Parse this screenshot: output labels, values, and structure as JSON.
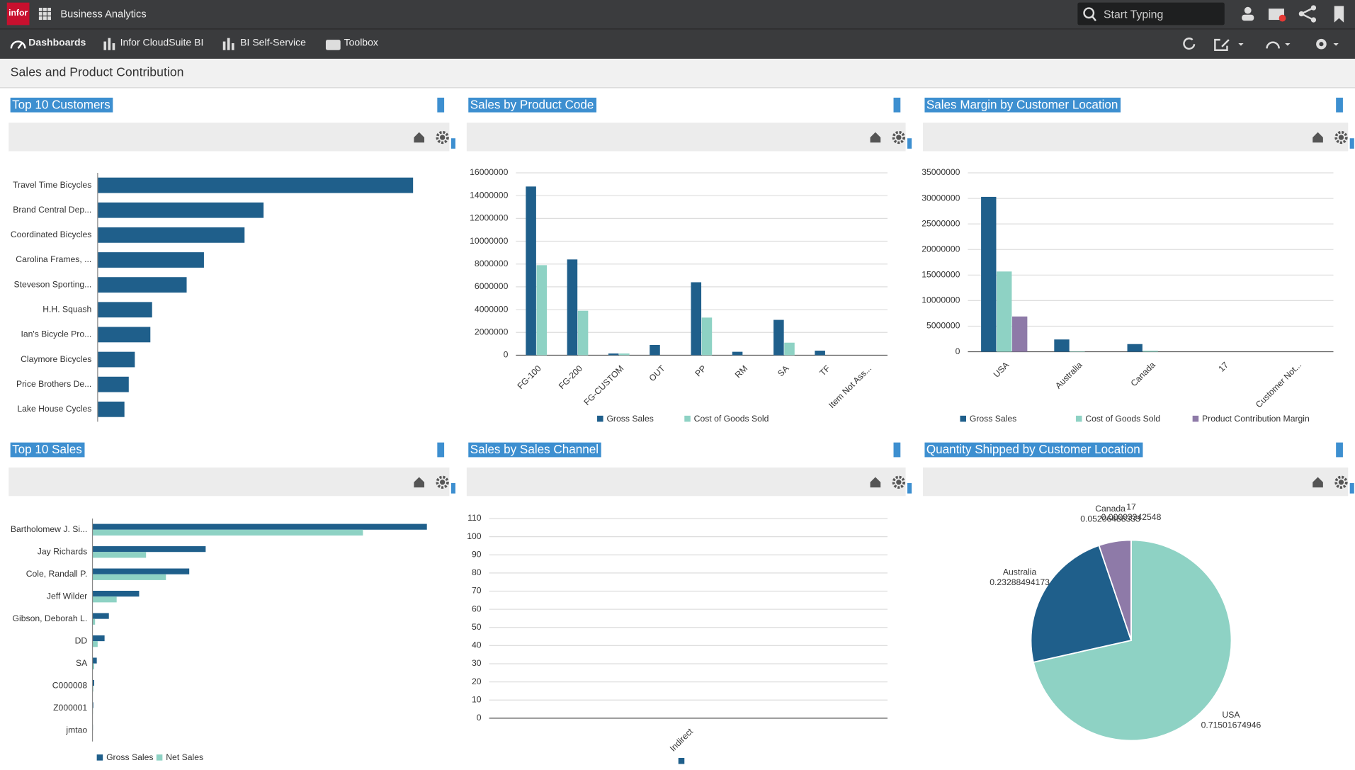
{
  "header": {
    "logo": "infor",
    "app_name": "Business Analytics",
    "search_placeholder": "Start Typing"
  },
  "nav": [
    "Dashboards",
    "Infor CloudSuite BI",
    "BI Self-Service",
    "Toolbox"
  ],
  "page_title": "Sales and Product Contribution",
  "panels": [
    {
      "title": "Top 10 Customers",
      "chart_data": {
        "type": "bar",
        "horizontal": true,
        "categories": [
          "Travel Time Bicycles",
          "Brand Central Dep...",
          "Coordinated Bicycles",
          "Carolina Frames, ...",
          "Steveson Sporting...",
          "H.H. Squash",
          "Ian's Bicycle Pro...",
          "Claymore Bicycles",
          "Price Brothers De...",
          "Lake House Cycles"
        ],
        "values": [
          365,
          192,
          170,
          123,
          103,
          63,
          61,
          43,
          36,
          31
        ],
        "color": "#1f5f8b",
        "xlim": [
          0,
          400
        ]
      }
    },
    {
      "title": "Sales by Product Code",
      "chart_data": {
        "type": "bar",
        "categories": [
          "FG-100",
          "FG-200",
          "FG-CUSTOM",
          "OUT",
          "PP",
          "RM",
          "SA",
          "TF",
          "Item Not Ass..."
        ],
        "series": [
          {
            "name": "Gross Sales",
            "color": "#1f5f8b",
            "values": [
              14800000,
              8400000,
              150000,
              900000,
              6400000,
              300000,
              3100000,
              400000,
              0
            ]
          },
          {
            "name": "Cost of Goods Sold",
            "color": "#8ed2c4",
            "values": [
              7900000,
              3900000,
              150000,
              0,
              3300000,
              0,
              1100000,
              0,
              0
            ]
          }
        ],
        "ylim": [
          0,
          16000000
        ],
        "yticks": [
          0,
          2000000,
          4000000,
          6000000,
          8000000,
          10000000,
          12000000,
          14000000,
          16000000
        ],
        "grid": true
      }
    },
    {
      "title": "Sales Margin by Customer Location",
      "chart_data": {
        "type": "bar",
        "categories": [
          "USA",
          "Australia",
          "Canada",
          "17",
          "Customer Not..."
        ],
        "series": [
          {
            "name": "Gross Sales",
            "color": "#1f5f8b",
            "values": [
              30300000,
              2400000,
              1500000,
              0,
              0
            ]
          },
          {
            "name": "Cost of Goods Sold",
            "color": "#8ed2c4",
            "values": [
              15700000,
              100000,
              200000,
              0,
              0
            ]
          },
          {
            "name": "Product Contribution Margin",
            "color": "#8e7aa8",
            "values": [
              6900000,
              0,
              0,
              0,
              0
            ]
          }
        ],
        "ylim": [
          0,
          35000000
        ],
        "yticks": [
          0,
          5000000,
          10000000,
          15000000,
          20000000,
          25000000,
          30000000,
          35000000
        ],
        "grid": true
      }
    },
    {
      "title": "Top 10 Sales",
      "chart_data": {
        "type": "bar",
        "horizontal": true,
        "categories": [
          "Bartholomew J. Si...",
          "Jay Richards",
          "Cole, Randall P.",
          "Jeff Wilder",
          "Gibson, Deborah L.",
          "DD",
          "SA",
          "C000008",
          "Z000001",
          "jmtao"
        ],
        "series": [
          {
            "name": "Gross Sales",
            "color": "#1f5f8b",
            "values": [
              387,
              131,
              112,
              54,
              19,
              14,
              5,
              2,
              1,
              0.5
            ]
          },
          {
            "name": "Net Sales",
            "color": "#8ed2c4",
            "values": [
              313,
              62,
              85,
              28,
              3,
              6,
              2,
              1,
              0.5,
              0.3
            ]
          }
        ],
        "xlim": [
          0,
          400
        ]
      }
    },
    {
      "title": "Sales by Sales Channel",
      "chart_data": {
        "type": "bar",
        "categories": [
          "Indirect"
        ],
        "series": [
          {
            "color": "#1f5f8b",
            "values": [
              0
            ]
          }
        ],
        "ylim": [
          0,
          110
        ],
        "yticks": [
          0,
          10,
          20,
          30,
          40,
          50,
          60,
          70,
          80,
          90,
          100,
          110
        ],
        "grid": true
      }
    },
    {
      "title": "Quantity Shipped by Customer Location",
      "chart_data": {
        "type": "pie",
        "categories": [
          "USA",
          "Australia",
          "Canada",
          "17"
        ],
        "values": [
          0.71501674946,
          0.23288494173,
          0.05206488333,
          3.342548e-05
        ],
        "colors": [
          "#8ed2c4",
          "#1f5f8b",
          "#8e7aa8",
          "#c9b6e0"
        ]
      }
    }
  ]
}
